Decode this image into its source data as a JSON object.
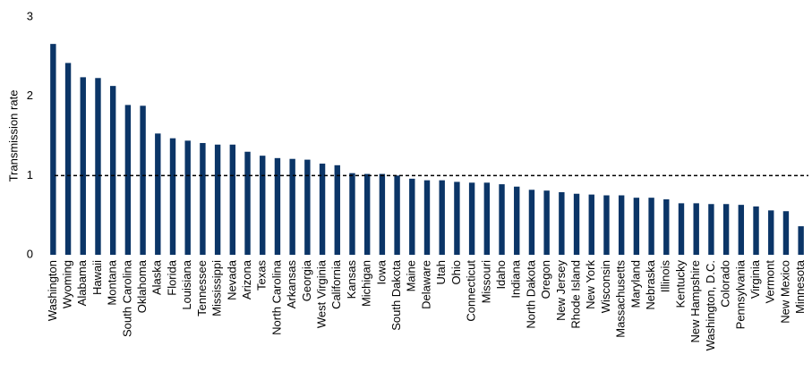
{
  "chart_data": {
    "type": "bar",
    "y_label": "Transmission rate",
    "categories": [
      "Washington",
      "Wyoming",
      "Alabama",
      "Hawaii",
      "Montana",
      "South Carolina",
      "Oklahoma",
      "Alaska",
      "Florida",
      "Louisiana",
      "Tennessee",
      "Mississippi",
      "Nevada",
      "Arizona",
      "Texas",
      "North Carolina",
      "Arkansas",
      "Georgia",
      "West Virginia",
      "California",
      "Kansas",
      "Michigan",
      "Iowa",
      "South Dakota",
      "Maine",
      "Delaware",
      "Utah",
      "Ohio",
      "Connecticut",
      "Missouri",
      "Idaho",
      "Indiana",
      "North Dakota",
      "Oregon",
      "New Jersey",
      "Rhode Island",
      "New York",
      "Wisconsin",
      "Massachusetts",
      "Maryland",
      "Nebraska",
      "Illinois",
      "Kentucky",
      "New Hampshire",
      "Washington, D.C.",
      "Colorado",
      "Pennsylvania",
      "Virginia",
      "Vermont",
      "New Mexico",
      "Minnesota"
    ],
    "values": [
      2.66,
      2.42,
      2.24,
      2.23,
      2.13,
      1.89,
      1.88,
      1.53,
      1.47,
      1.44,
      1.41,
      1.39,
      1.39,
      1.3,
      1.25,
      1.22,
      1.21,
      1.2,
      1.15,
      1.13,
      1.03,
      1.02,
      1.02,
      1.0,
      0.96,
      0.94,
      0.94,
      0.92,
      0.91,
      0.91,
      0.89,
      0.86,
      0.82,
      0.81,
      0.79,
      0.77,
      0.76,
      0.75,
      0.75,
      0.72,
      0.72,
      0.7,
      0.65,
      0.65,
      0.64,
      0.64,
      0.63,
      0.61,
      0.56,
      0.55,
      0.36
    ],
    "color": "#0b3567",
    "reference_line": 1,
    "ylim": [
      0,
      3
    ],
    "yticks": [
      0,
      1,
      2,
      3
    ],
    "grid": false
  }
}
